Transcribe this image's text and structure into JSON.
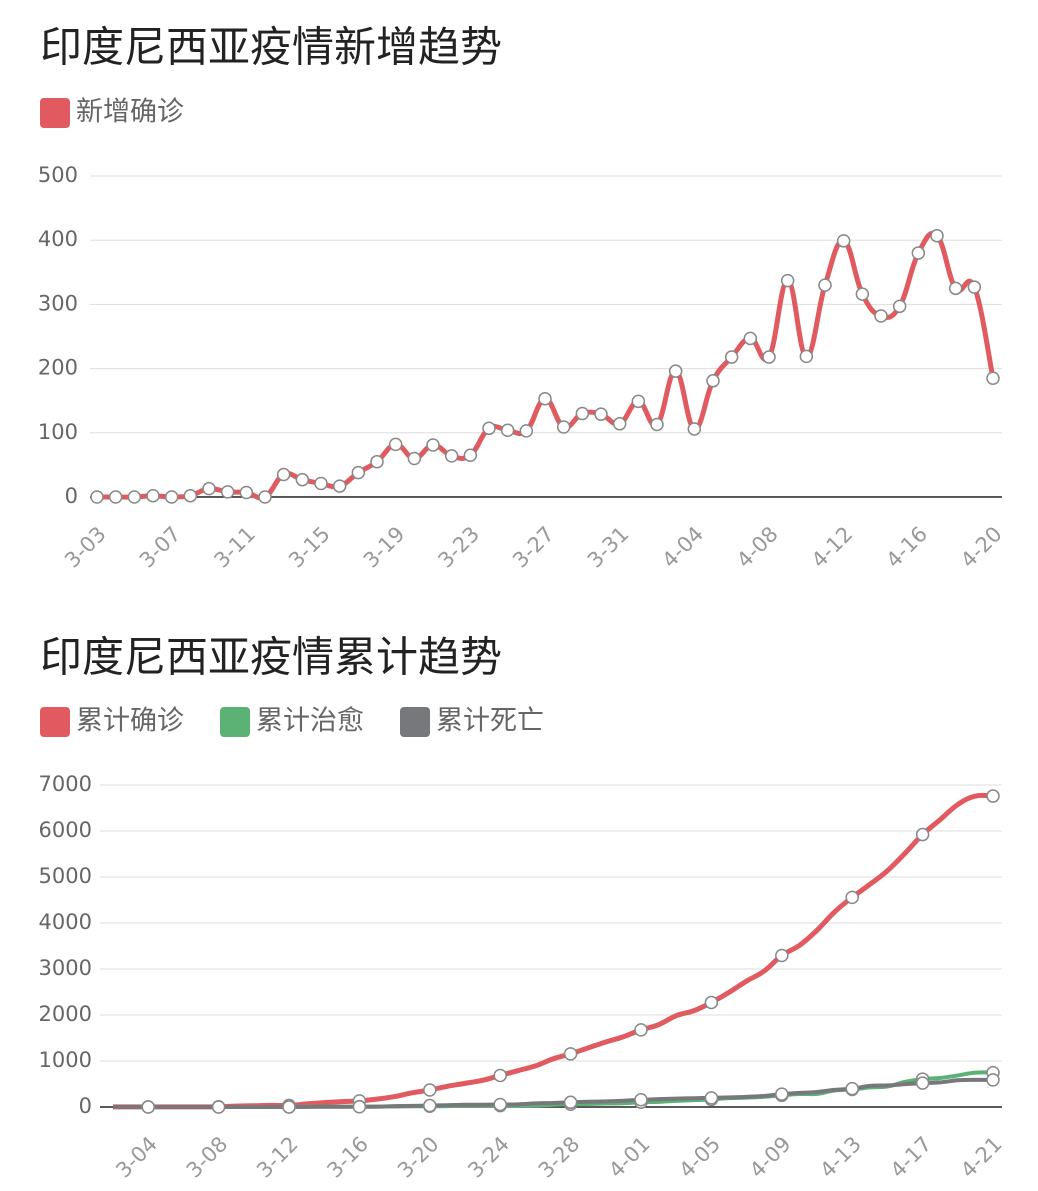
{
  "chart_data": [
    {
      "type": "line",
      "title": "印度尼西亚疫情新增趋势",
      "categories": [
        "3-03",
        null,
        null,
        null,
        "3-07",
        null,
        null,
        null,
        "3-11",
        null,
        null,
        null,
        "3-15",
        null,
        null,
        null,
        "3-19",
        null,
        null,
        null,
        "3-23",
        null,
        null,
        null,
        "3-27",
        null,
        null,
        null,
        "3-31",
        null,
        null,
        null,
        "4-04",
        null,
        null,
        null,
        "4-08",
        null,
        null,
        null,
        "4-12",
        null,
        null,
        null,
        "4-16",
        null,
        null,
        null,
        "4-20"
      ],
      "series": [
        {
          "name": "新增确诊",
          "color": "#e05a60",
          "values": [
            0,
            0,
            0,
            2,
            0,
            2,
            13,
            8,
            7,
            0,
            35,
            27,
            21,
            17,
            38,
            55,
            82,
            60,
            81,
            64,
            65,
            107,
            104,
            103,
            153,
            109,
            130,
            129,
            114,
            149,
            113,
            196,
            106,
            181,
            218,
            247,
            218,
            337,
            219,
            330,
            399,
            316,
            282,
            297,
            380,
            407,
            325,
            327,
            185
          ]
        }
      ],
      "ylim": [
        0,
        500
      ],
      "yticks": [
        0,
        100,
        200,
        300,
        400,
        500
      ],
      "grid": true,
      "markers": "all"
    },
    {
      "type": "line",
      "title": "印度尼西亚疫情累计趋势",
      "categories": [
        null,
        null,
        "3-04",
        null,
        null,
        null,
        "3-08",
        null,
        null,
        null,
        "3-12",
        null,
        null,
        null,
        "3-16",
        null,
        null,
        null,
        "3-20",
        null,
        null,
        null,
        "3-24",
        null,
        null,
        null,
        "3-28",
        null,
        null,
        null,
        "4-01",
        null,
        null,
        null,
        "4-05",
        null,
        null,
        null,
        "4-09",
        null,
        null,
        null,
        "4-13",
        null,
        null,
        null,
        "4-17",
        null,
        null,
        null,
        "4-21"
      ],
      "series": [
        {
          "name": "累计确诊",
          "color": "#e05a60",
          "values": [
            2,
            2,
            2,
            2,
            4,
            4,
            6,
            19,
            27,
            34,
            34,
            69,
            96,
            117,
            134,
            172,
            227,
            309,
            369,
            450,
            514,
            579,
            686,
            790,
            893,
            1046,
            1155,
            1285,
            1414,
            1528,
            1677,
            1790,
            1986,
            2092,
            2273,
            2491,
            2738,
            2956,
            3293,
            3512,
            3842,
            4241,
            4557,
            4839,
            5136,
            5516,
            5923,
            6248,
            6575,
            6760,
            6760
          ]
        },
        {
          "name": "累计治愈",
          "color": "#5bb274",
          "values": [
            0,
            0,
            0,
            0,
            0,
            0,
            0,
            0,
            0,
            0,
            0,
            5,
            8,
            8,
            8,
            9,
            11,
            15,
            16,
            20,
            29,
            30,
            30,
            31,
            35,
            46,
            59,
            64,
            75,
            81,
            103,
            112,
            134,
            150,
            164,
            192,
            204,
            222,
            252,
            282,
            286,
            359,
            380,
            426,
            446,
            548,
            607,
            631,
            686,
            747,
            747
          ]
        },
        {
          "name": "累计死亡",
          "color": "#77787c",
          "values": [
            0,
            0,
            0,
            0,
            0,
            0,
            0,
            0,
            0,
            1,
            1,
            4,
            5,
            5,
            5,
            7,
            19,
            25,
            32,
            38,
            48,
            49,
            55,
            58,
            78,
            87,
            102,
            114,
            122,
            136,
            157,
            170,
            181,
            191,
            198,
            209,
            221,
            240,
            280,
            306,
            327,
            373,
            399,
            459,
            469,
            496,
            520,
            535,
            582,
            590,
            590
          ]
        }
      ],
      "ylim": [
        0,
        7000
      ],
      "yticks": [
        0,
        1000,
        2000,
        3000,
        4000,
        5000,
        6000,
        7000
      ],
      "grid": true,
      "markers": "labeled"
    }
  ]
}
